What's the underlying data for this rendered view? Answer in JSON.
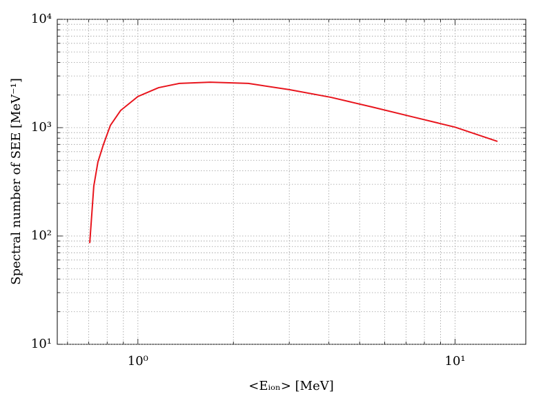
{
  "chart_data": {
    "type": "line",
    "x_label": "<Eᵢₒₙ> [MeV]",
    "y_label": "Spectral number of SEE [MeV⁻¹]",
    "x": [
      0.705,
      0.726,
      0.748,
      0.778,
      0.819,
      0.882,
      1.0,
      1.162,
      1.35,
      1.69,
      2.23,
      3.01,
      4.06,
      5.48,
      7.41,
      10.0,
      13.6
    ],
    "series": [
      {
        "color": "#e8141c",
        "values": [
          86,
          288,
          481,
          693,
          1050,
          1440,
          1940,
          2340,
          2560,
          2630,
          2560,
          2240,
          1905,
          1550,
          1250,
          1010,
          746
        ]
      }
    ],
    "x_log": true,
    "y_log": true,
    "grid": true,
    "xlim": [
      0.557,
      16.7
    ],
    "ylim": [
      10,
      10000
    ],
    "xticks": [
      {
        "value": 1,
        "label": "10⁰"
      },
      {
        "value": 10,
        "label": "10¹"
      }
    ],
    "yticks": [
      {
        "value": 10,
        "label": "10¹"
      },
      {
        "value": 100,
        "label": "10²"
      },
      {
        "value": 1000,
        "label": "10³"
      },
      {
        "value": 10000,
        "label": "10⁴"
      }
    ],
    "x_minor_ticks": [
      0.6,
      0.7,
      0.8,
      0.9,
      2,
      3,
      4,
      5,
      6,
      7,
      8,
      9
    ],
    "y_minor_ticks": [
      20,
      30,
      40,
      50,
      60,
      70,
      80,
      90,
      200,
      300,
      400,
      500,
      600,
      700,
      800,
      900,
      2000,
      3000,
      4000,
      5000,
      6000,
      7000,
      8000,
      9000
    ]
  }
}
